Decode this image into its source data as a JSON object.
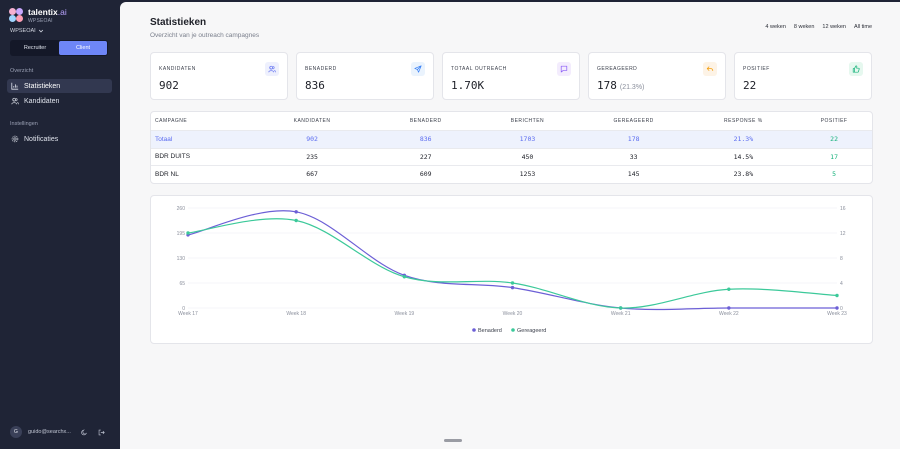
{
  "brand": {
    "name": "talentix",
    "suffix": ".ai",
    "workspace_label": "WPSEOAI"
  },
  "workspace_select": {
    "value": "WPSEOAI"
  },
  "role_toggle": {
    "recruiter": "Recruiter",
    "client": "Client",
    "active": "client"
  },
  "sidebar": {
    "section_overview": "Overzicht",
    "items_overview": [
      {
        "label": "Statistieken",
        "icon": "bar-chart-icon",
        "active": true
      },
      {
        "label": "Kandidaten",
        "icon": "users-icon",
        "active": false
      }
    ],
    "section_settings": "Instellingen",
    "items_settings": [
      {
        "label": "Notificaties",
        "icon": "gear-icon",
        "active": false
      }
    ]
  },
  "user": {
    "initial": "G",
    "email": "guido@searchx..."
  },
  "page": {
    "title": "Statistieken",
    "subtitle": "Overzicht van je outreach campagnes"
  },
  "ranges": [
    "4 weken",
    "8 weken",
    "12 weken",
    "All time"
  ],
  "cards": [
    {
      "label": "KANDIDATEN",
      "value": "902",
      "pct": "",
      "icon": "users-icon",
      "icon_bg": "#eef0fd",
      "icon_color": "#5b6cf0"
    },
    {
      "label": "BENADERD",
      "value": "836",
      "pct": "",
      "icon": "send-icon",
      "icon_bg": "#eaf3fd",
      "icon_color": "#3b82f6"
    },
    {
      "label": "TOTAAL OUTREACH",
      "value": "1.70K",
      "pct": "",
      "icon": "message-icon",
      "icon_bg": "#f3ecfd",
      "icon_color": "#8b5cf6"
    },
    {
      "label": "GEREAGEERD",
      "value": "178",
      "pct": "(21.3%)",
      "icon": "reply-icon",
      "icon_bg": "#fdf3e6",
      "icon_color": "#f59e0b"
    },
    {
      "label": "POSITIEF",
      "value": "22",
      "pct": "",
      "icon": "thumbs-up-icon",
      "icon_bg": "#e6f8ef",
      "icon_color": "#14b27a"
    }
  ],
  "table": {
    "headers": [
      "CAMPAGNE",
      "KANDIDATEN",
      "BENADERD",
      "BERICHTEN",
      "GEREAGEERD",
      "RESPONSE %",
      "POSITIEF"
    ],
    "rows": [
      [
        "Totaal",
        "902",
        "836",
        "1703",
        "178",
        "21.3%",
        "22"
      ],
      [
        "BDR DUITS",
        "235",
        "227",
        "450",
        "33",
        "14.5%",
        "17"
      ],
      [
        "BDR NL",
        "667",
        "609",
        "1253",
        "145",
        "23.8%",
        "5"
      ]
    ]
  },
  "chart_data": {
    "type": "line",
    "categories": [
      "Week 17",
      "Week 18",
      "Week 19",
      "Week 20",
      "Week 21",
      "Week 22",
      "Week 23"
    ],
    "series": [
      {
        "name": "Benaderd",
        "axis": "left",
        "color": "#6c5fd6",
        "values": [
          190,
          250,
          85,
          53,
          0,
          0,
          0
        ]
      },
      {
        "name": "Gereageerd",
        "axis": "right",
        "color": "#3cc99a",
        "values": [
          12,
          14,
          5,
          4,
          0,
          3,
          2
        ]
      }
    ],
    "y_left": {
      "ticks": [
        "0",
        "65",
        "130",
        "195",
        "260"
      ],
      "min": 0,
      "max": 260
    },
    "y_right": {
      "ticks": [
        "0",
        "4",
        "8",
        "12",
        "16"
      ],
      "min": 0,
      "max": 16
    },
    "legend_position": "bottom",
    "grid": true
  }
}
